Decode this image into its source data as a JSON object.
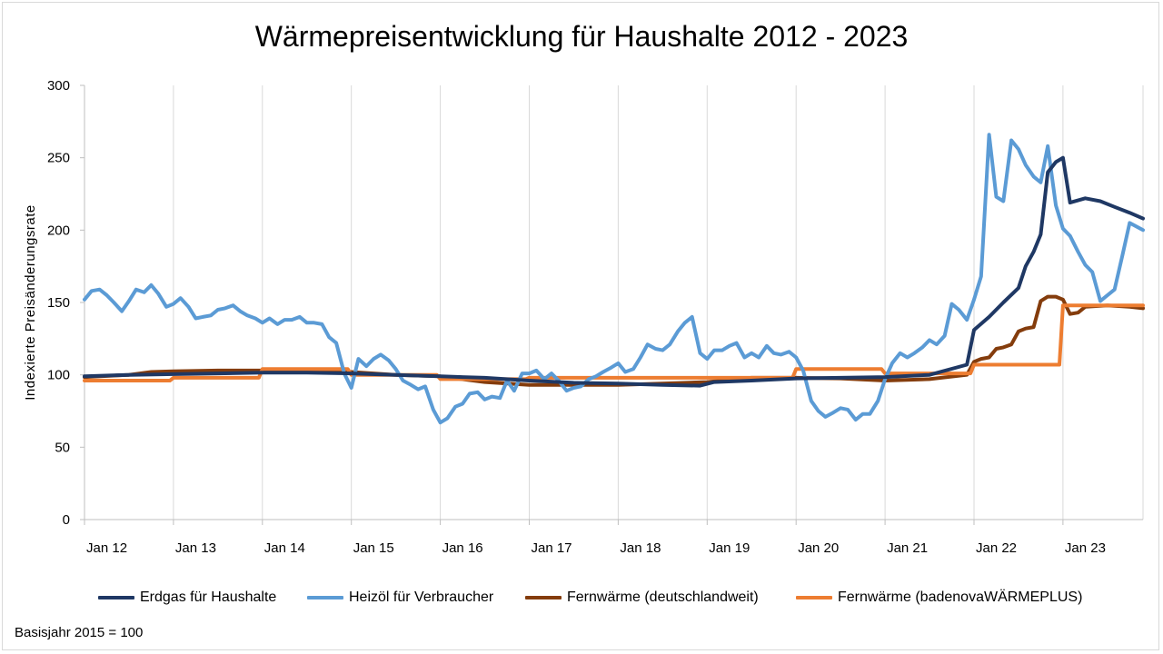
{
  "chart_data": {
    "type": "line",
    "title": "Wärmepreisentwicklung für Haushalte 2012 - 2023",
    "xlabel": "",
    "ylabel": "Indexierte Preisänderungsrate",
    "ylim": [
      0,
      300
    ],
    "yticks": [
      0,
      50,
      100,
      150,
      200,
      250,
      300
    ],
    "xticks": [
      {
        "label": "Jan 12",
        "x": 2012
      },
      {
        "label": "Jan 13",
        "x": 2013
      },
      {
        "label": "Jan 14",
        "x": 2014
      },
      {
        "label": "Jan 15",
        "x": 2015
      },
      {
        "label": "Jan 16",
        "x": 2016
      },
      {
        "label": "Jan 17",
        "x": 2017
      },
      {
        "label": "Jan 18",
        "x": 2018
      },
      {
        "label": "Jan 19",
        "x": 2019
      },
      {
        "label": "Jan 20",
        "x": 2020
      },
      {
        "label": "Jan 21",
        "x": 2021
      },
      {
        "label": "Jan 22",
        "x": 2022
      },
      {
        "label": "Jan 23",
        "x": 2023
      }
    ],
    "xlim": [
      2012,
      2023.9
    ],
    "grid": "vertical",
    "legend": "bottom",
    "series": [
      {
        "name": "Erdgas für Haushalte",
        "color": "#1f3864",
        "points": [
          [
            2012.0,
            99
          ],
          [
            2012.5,
            100
          ],
          [
            2013.0,
            100.5
          ],
          [
            2013.5,
            101
          ],
          [
            2014.0,
            101.5
          ],
          [
            2014.5,
            101.5
          ],
          [
            2015.0,
            101
          ],
          [
            2015.5,
            100
          ],
          [
            2016.0,
            99
          ],
          [
            2016.5,
            98
          ],
          [
            2017.0,
            96
          ],
          [
            2017.5,
            94.5
          ],
          [
            2018.0,
            94
          ],
          [
            2018.5,
            93
          ],
          [
            2018.92,
            92.5
          ],
          [
            2019.08,
            95
          ],
          [
            2019.5,
            96
          ],
          [
            2020.0,
            97.5
          ],
          [
            2020.5,
            98
          ],
          [
            2021.0,
            98.5
          ],
          [
            2021.5,
            100
          ],
          [
            2021.92,
            107
          ],
          [
            2022.0,
            131
          ],
          [
            2022.17,
            140
          ],
          [
            2022.33,
            150
          ],
          [
            2022.5,
            160
          ],
          [
            2022.58,
            175
          ],
          [
            2022.67,
            185
          ],
          [
            2022.75,
            197
          ],
          [
            2022.83,
            240
          ],
          [
            2022.92,
            247
          ],
          [
            2023.0,
            250
          ],
          [
            2023.08,
            219
          ],
          [
            2023.25,
            222
          ],
          [
            2023.42,
            220
          ],
          [
            2023.58,
            216
          ],
          [
            2023.75,
            212
          ],
          [
            2023.9,
            208
          ]
        ]
      },
      {
        "name": "Heizöl für Verbraucher",
        "color": "#5b9bd5",
        "points": [
          [
            2012.0,
            152
          ],
          [
            2012.08,
            158
          ],
          [
            2012.17,
            159
          ],
          [
            2012.25,
            155
          ],
          [
            2012.33,
            150
          ],
          [
            2012.42,
            144
          ],
          [
            2012.5,
            151
          ],
          [
            2012.58,
            159
          ],
          [
            2012.67,
            157
          ],
          [
            2012.75,
            162
          ],
          [
            2012.83,
            156
          ],
          [
            2012.92,
            147
          ],
          [
            2013.0,
            149
          ],
          [
            2013.08,
            153
          ],
          [
            2013.17,
            147
          ],
          [
            2013.25,
            139
          ],
          [
            2013.33,
            140
          ],
          [
            2013.42,
            141
          ],
          [
            2013.5,
            145
          ],
          [
            2013.58,
            146
          ],
          [
            2013.67,
            148
          ],
          [
            2013.75,
            144
          ],
          [
            2013.83,
            141
          ],
          [
            2013.92,
            139
          ],
          [
            2014.0,
            136
          ],
          [
            2014.08,
            139
          ],
          [
            2014.17,
            135
          ],
          [
            2014.25,
            138
          ],
          [
            2014.33,
            138
          ],
          [
            2014.42,
            140
          ],
          [
            2014.5,
            136
          ],
          [
            2014.58,
            136
          ],
          [
            2014.67,
            135
          ],
          [
            2014.75,
            126
          ],
          [
            2014.83,
            122
          ],
          [
            2014.92,
            101
          ],
          [
            2015.0,
            91
          ],
          [
            2015.08,
            111
          ],
          [
            2015.17,
            106
          ],
          [
            2015.25,
            111
          ],
          [
            2015.33,
            114
          ],
          [
            2015.42,
            110
          ],
          [
            2015.5,
            104
          ],
          [
            2015.58,
            96
          ],
          [
            2015.67,
            93
          ],
          [
            2015.75,
            90
          ],
          [
            2015.83,
            92
          ],
          [
            2015.92,
            76
          ],
          [
            2016.0,
            67
          ],
          [
            2016.08,
            70
          ],
          [
            2016.17,
            78
          ],
          [
            2016.25,
            80
          ],
          [
            2016.33,
            87
          ],
          [
            2016.42,
            88
          ],
          [
            2016.5,
            83
          ],
          [
            2016.58,
            85
          ],
          [
            2016.67,
            84
          ],
          [
            2016.75,
            96
          ],
          [
            2016.83,
            89
          ],
          [
            2016.92,
            101
          ],
          [
            2017.0,
            101
          ],
          [
            2017.08,
            103
          ],
          [
            2017.17,
            97
          ],
          [
            2017.25,
            101
          ],
          [
            2017.33,
            96
          ],
          [
            2017.42,
            89
          ],
          [
            2017.5,
            91
          ],
          [
            2017.58,
            92
          ],
          [
            2017.67,
            97
          ],
          [
            2017.75,
            99
          ],
          [
            2017.83,
            102
          ],
          [
            2017.92,
            105
          ],
          [
            2018.0,
            108
          ],
          [
            2018.08,
            102
          ],
          [
            2018.17,
            104
          ],
          [
            2018.25,
            112
          ],
          [
            2018.33,
            121
          ],
          [
            2018.42,
            118
          ],
          [
            2018.5,
            117
          ],
          [
            2018.58,
            121
          ],
          [
            2018.67,
            130
          ],
          [
            2018.75,
            136
          ],
          [
            2018.83,
            140
          ],
          [
            2018.92,
            115
          ],
          [
            2019.0,
            111
          ],
          [
            2019.08,
            117
          ],
          [
            2019.17,
            117
          ],
          [
            2019.25,
            120
          ],
          [
            2019.33,
            122
          ],
          [
            2019.42,
            112
          ],
          [
            2019.5,
            115
          ],
          [
            2019.58,
            112
          ],
          [
            2019.67,
            120
          ],
          [
            2019.75,
            115
          ],
          [
            2019.83,
            114
          ],
          [
            2019.92,
            116
          ],
          [
            2020.0,
            112
          ],
          [
            2020.08,
            103
          ],
          [
            2020.17,
            82
          ],
          [
            2020.25,
            75
          ],
          [
            2020.33,
            71
          ],
          [
            2020.42,
            74
          ],
          [
            2020.5,
            77
          ],
          [
            2020.58,
            76
          ],
          [
            2020.67,
            69
          ],
          [
            2020.75,
            73
          ],
          [
            2020.83,
            73
          ],
          [
            2020.92,
            82
          ],
          [
            2021.0,
            97
          ],
          [
            2021.08,
            108
          ],
          [
            2021.17,
            115
          ],
          [
            2021.25,
            112
          ],
          [
            2021.33,
            115
          ],
          [
            2021.42,
            119
          ],
          [
            2021.5,
            124
          ],
          [
            2021.58,
            121
          ],
          [
            2021.67,
            127
          ],
          [
            2021.75,
            149
          ],
          [
            2021.83,
            145
          ],
          [
            2021.92,
            138
          ],
          [
            2022.0,
            152
          ],
          [
            2022.08,
            168
          ],
          [
            2022.17,
            266
          ],
          [
            2022.25,
            223
          ],
          [
            2022.33,
            220
          ],
          [
            2022.42,
            262
          ],
          [
            2022.5,
            256
          ],
          [
            2022.58,
            245
          ],
          [
            2022.67,
            237
          ],
          [
            2022.75,
            233
          ],
          [
            2022.83,
            258
          ],
          [
            2022.92,
            217
          ],
          [
            2023.0,
            201
          ],
          [
            2023.08,
            196
          ],
          [
            2023.17,
            185
          ],
          [
            2023.25,
            176
          ],
          [
            2023.33,
            171
          ],
          [
            2023.42,
            151
          ],
          [
            2023.58,
            159
          ],
          [
            2023.67,
            183
          ],
          [
            2023.75,
            205
          ],
          [
            2023.9,
            200
          ]
        ]
      },
      {
        "name": "Fernwärme (deutschlandweit)",
        "color": "#843c0c",
        "points": [
          [
            2012.0,
            98.5
          ],
          [
            2012.5,
            100
          ],
          [
            2012.75,
            102
          ],
          [
            2013.0,
            102.5
          ],
          [
            2013.5,
            103
          ],
          [
            2014.0,
            103
          ],
          [
            2014.5,
            102
          ],
          [
            2015.0,
            102
          ],
          [
            2015.5,
            100
          ],
          [
            2016.0,
            99
          ],
          [
            2016.5,
            95
          ],
          [
            2017.0,
            93
          ],
          [
            2017.5,
            93
          ],
          [
            2018.0,
            93
          ],
          [
            2018.5,
            94
          ],
          [
            2019.0,
            95
          ],
          [
            2019.5,
            98
          ],
          [
            2020.0,
            98
          ],
          [
            2020.5,
            97.5
          ],
          [
            2021.0,
            96
          ],
          [
            2021.5,
            97
          ],
          [
            2021.92,
            100
          ],
          [
            2022.0,
            109
          ],
          [
            2022.08,
            111
          ],
          [
            2022.17,
            112
          ],
          [
            2022.25,
            118
          ],
          [
            2022.33,
            119
          ],
          [
            2022.42,
            121
          ],
          [
            2022.5,
            130
          ],
          [
            2022.58,
            132
          ],
          [
            2022.67,
            133
          ],
          [
            2022.75,
            151
          ],
          [
            2022.83,
            154
          ],
          [
            2022.92,
            154
          ],
          [
            2023.0,
            152
          ],
          [
            2023.08,
            142
          ],
          [
            2023.17,
            143
          ],
          [
            2023.25,
            147
          ],
          [
            2023.5,
            148
          ],
          [
            2023.75,
            147
          ],
          [
            2023.9,
            146
          ]
        ]
      },
      {
        "name": "Fernwärme (badenovaWÄRMEPLUS)",
        "color": "#ed7d31",
        "points": [
          [
            2012.0,
            96
          ],
          [
            2012.96,
            96
          ],
          [
            2013.0,
            98
          ],
          [
            2013.96,
            98
          ],
          [
            2014.0,
            104
          ],
          [
            2014.96,
            104
          ],
          [
            2015.0,
            100
          ],
          [
            2015.96,
            100
          ],
          [
            2016.0,
            97
          ],
          [
            2016.96,
            97
          ],
          [
            2017.0,
            98
          ],
          [
            2019.96,
            98
          ],
          [
            2020.0,
            104
          ],
          [
            2020.96,
            104
          ],
          [
            2021.0,
            101
          ],
          [
            2021.96,
            101
          ],
          [
            2022.0,
            107
          ],
          [
            2022.96,
            107
          ],
          [
            2023.0,
            148
          ],
          [
            2023.9,
            148
          ]
        ]
      }
    ]
  },
  "footnote": "Basisjahr 2015 = 100"
}
